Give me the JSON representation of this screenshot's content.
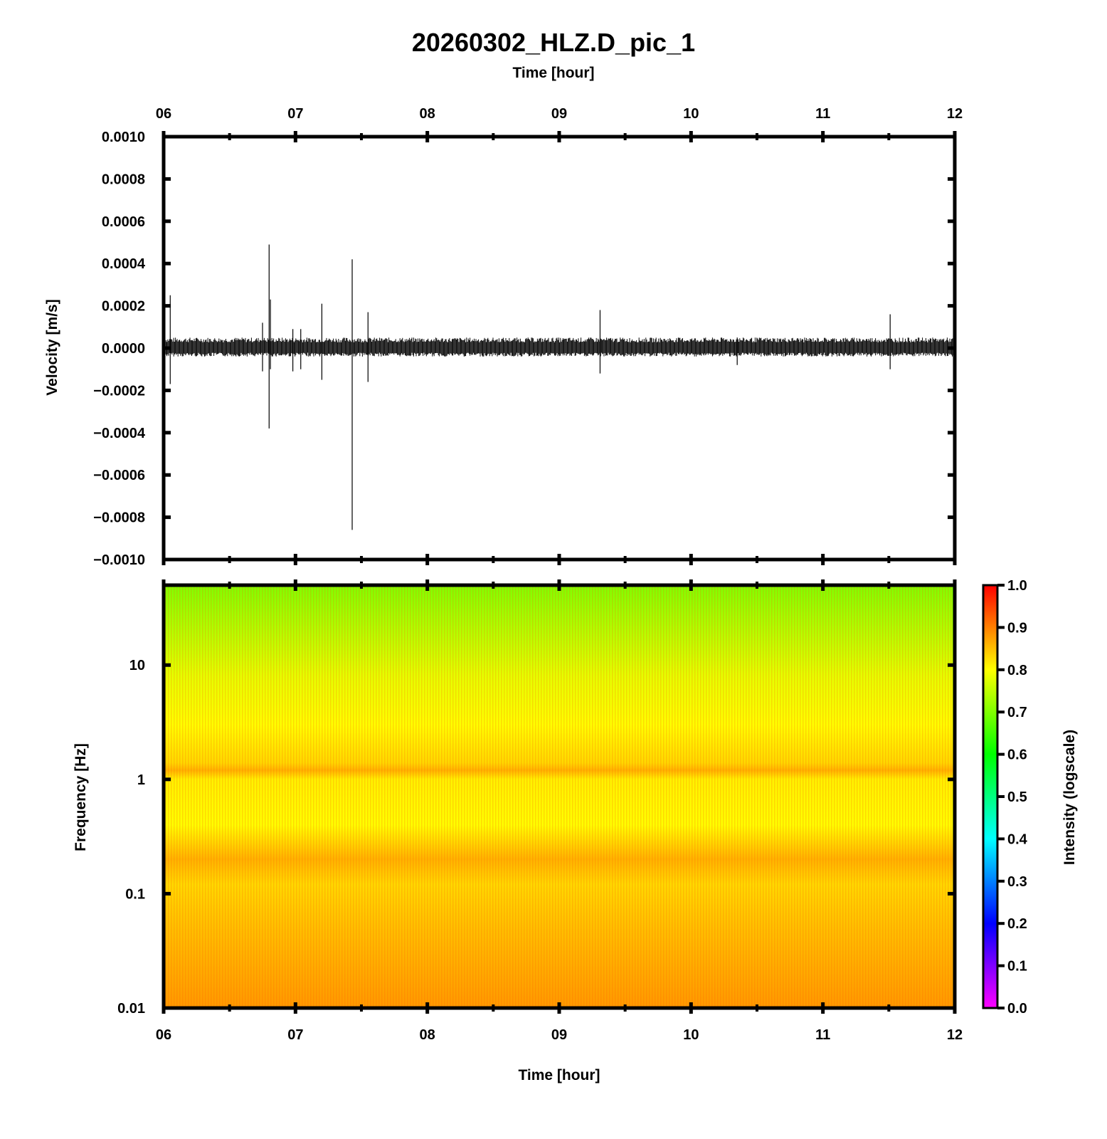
{
  "figure": {
    "title": "20260302_HLZ.D_pic_1"
  },
  "chart_data": [
    {
      "type": "line",
      "name": "velocity-waveform",
      "top_xlabel": "Time [hour]",
      "ylabel": "Velocity [m/s]",
      "xlim": [
        6,
        12
      ],
      "ylim": [
        -0.001,
        0.001
      ],
      "x_ticks": [
        "06",
        "07",
        "08",
        "09",
        "10",
        "11",
        "12"
      ],
      "x_tick_values": [
        6,
        7,
        8,
        9,
        10,
        11,
        12
      ],
      "y_ticks": [
        "0.0010",
        "0.0008",
        "0.0006",
        "0.0004",
        "0.0002",
        "0.0000",
        "−0.0002",
        "−0.0004",
        "−0.0006",
        "−0.0008",
        "−0.0010"
      ],
      "y_tick_values": [
        0.001,
        0.0008,
        0.0006,
        0.0004,
        0.0002,
        0.0,
        -0.0002,
        -0.0004,
        -0.0006,
        -0.0008,
        -0.001
      ],
      "noise_envelope": {
        "upper": 5e-05,
        "lower": -4e-05
      },
      "spikes": [
        {
          "x": 6.05,
          "y_max": 0.00025,
          "y_min": -0.00017
        },
        {
          "x": 6.75,
          "y_max": 0.00012,
          "y_min": -0.00011
        },
        {
          "x": 6.8,
          "y_max": 0.00049,
          "y_min": -0.00038
        },
        {
          "x": 6.81,
          "y_max": 0.00023,
          "y_min": -0.0001
        },
        {
          "x": 6.98,
          "y_max": 9e-05,
          "y_min": -0.00011
        },
        {
          "x": 7.04,
          "y_max": 9e-05,
          "y_min": -0.0001
        },
        {
          "x": 7.2,
          "y_max": 0.00021,
          "y_min": -0.00015
        },
        {
          "x": 7.43,
          "y_max": 0.00042,
          "y_min": -0.00086
        },
        {
          "x": 7.55,
          "y_max": 0.00017,
          "y_min": -0.00016
        },
        {
          "x": 9.31,
          "y_max": 0.00018,
          "y_min": -0.00012
        },
        {
          "x": 10.35,
          "y_max": 5e-05,
          "y_min": -8e-05
        },
        {
          "x": 11.51,
          "y_max": 0.00016,
          "y_min": -0.0001
        }
      ]
    },
    {
      "type": "heatmap",
      "name": "spectrogram",
      "xlabel": "Time [hour]",
      "ylabel": "Frequency [Hz]",
      "xlim": [
        6,
        12
      ],
      "ylim": [
        0.01,
        50
      ],
      "yscale": "log",
      "x_ticks": [
        "06",
        "07",
        "08",
        "09",
        "10",
        "11",
        "12"
      ],
      "x_tick_values": [
        6,
        7,
        8,
        9,
        10,
        11,
        12
      ],
      "y_ticks": [
        "10",
        "1",
        "0.1",
        "0.01"
      ],
      "y_tick_values": [
        10,
        1,
        0.1,
        0.01
      ],
      "colorbar": {
        "label": "Intensity (logscale)",
        "range": [
          0,
          1
        ],
        "ticks": [
          "1.0",
          "0.9",
          "0.8",
          "0.7",
          "0.6",
          "0.5",
          "0.4",
          "0.3",
          "0.2",
          "0.1",
          "0.0"
        ],
        "tick_values": [
          1.0,
          0.9,
          0.8,
          0.7,
          0.6,
          0.5,
          0.4,
          0.3,
          0.2,
          0.1,
          0.0
        ],
        "colormap": [
          "#ff00ff",
          "#8000ff",
          "#0000ff",
          "#0080ff",
          "#00ffff",
          "#00ff80",
          "#00ff00",
          "#80ff00",
          "#ffff00",
          "#ff8000",
          "#ff0000"
        ]
      },
      "intensity_profile": [
        {
          "freq": 50,
          "intensity": 0.7
        },
        {
          "freq": 20,
          "intensity": 0.74
        },
        {
          "freq": 8,
          "intensity": 0.78
        },
        {
          "freq": 3,
          "intensity": 0.8
        },
        {
          "freq": 1.4,
          "intensity": 0.83
        },
        {
          "freq": 1.2,
          "intensity": 0.86
        },
        {
          "freq": 1.0,
          "intensity": 0.81
        },
        {
          "freq": 0.4,
          "intensity": 0.8
        },
        {
          "freq": 0.2,
          "intensity": 0.86
        },
        {
          "freq": 0.12,
          "intensity": 0.83
        },
        {
          "freq": 0.05,
          "intensity": 0.85
        },
        {
          "freq": 0.01,
          "intensity": 0.88
        }
      ]
    }
  ]
}
